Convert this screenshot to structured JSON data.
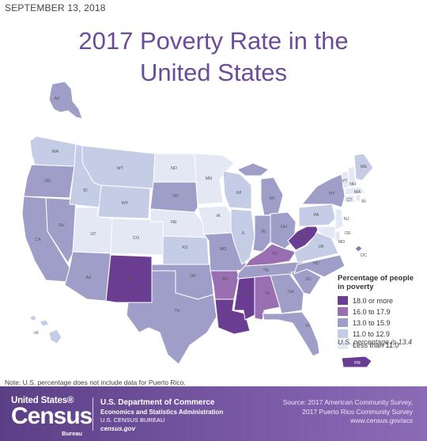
{
  "date": "SEPTEMBER 13, 2018",
  "title_line1": "2017 Poverty Rate in the",
  "title_line2": "United States",
  "legend": {
    "title_line1": "Percentage of people",
    "title_line2": "in poverty",
    "items": [
      {
        "label": "18.0 or more",
        "color": "#6a3d92"
      },
      {
        "label": "16.0 to 17.9",
        "color": "#9a6eb3"
      },
      {
        "label": "13.0 to 15.9",
        "color": "#9e9ec8"
      },
      {
        "label": "11.0 to 12.9",
        "color": "#c5cce6"
      },
      {
        "label": "Less than 11.0",
        "color": "#e3e8f4"
      }
    ]
  },
  "us_percentage": "U.S. percentage is 13.4",
  "note": "Note: U.S. percentage does not include data for Puerto Rico.",
  "states": {
    "AK": "AK",
    "HI": "HI",
    "WA": "WA",
    "OR": "OR",
    "CA": "CA",
    "NV": "NV",
    "ID": "ID",
    "MT": "MT",
    "WY": "WY",
    "UT": "UT",
    "AZ": "AZ",
    "CO": "CO",
    "NM": "NM",
    "ND": "ND",
    "SD": "SD",
    "NE": "NE",
    "KS": "KS",
    "OK": "OK",
    "TX": "TX",
    "MN": "MN",
    "IA": "IA",
    "MO": "MO",
    "AR": "AR",
    "LA": "LA",
    "WI": "WI",
    "IL": "IL",
    "MS": "MS",
    "MI": "MI",
    "IN": "IN",
    "KY": "KY",
    "TN": "TN",
    "AL": "AL",
    "OH": "OH",
    "WV": "WV",
    "GA": "GA",
    "FL": "FL",
    "SC": "SC",
    "NC": "NC",
    "VA": "VA",
    "PA": "PA",
    "NY": "NY",
    "VT": "VT",
    "NH": "NH",
    "ME": "ME",
    "MA": "MA",
    "CT": "CT",
    "RI": "RI",
    "NJ": "NJ",
    "DE": "DE",
    "MD": "MD",
    "DC": "DC",
    "PR": "PR"
  },
  "footer": {
    "logo_top": "United States®",
    "logo_main": "Census",
    "logo_bottom": "Bureau",
    "dept_line1": "U.S. Department of Commerce",
    "dept_line2": "Economics and Statistics Administration",
    "dept_line3": "U.S. CENSUS BUREAU",
    "dept_line4": "census.gov",
    "source_line1": "Source: 2017 American Community Survey,",
    "source_line2": "2017 Puerto Rico Community Survey",
    "source_line3": "www.census.gov/acs"
  }
}
